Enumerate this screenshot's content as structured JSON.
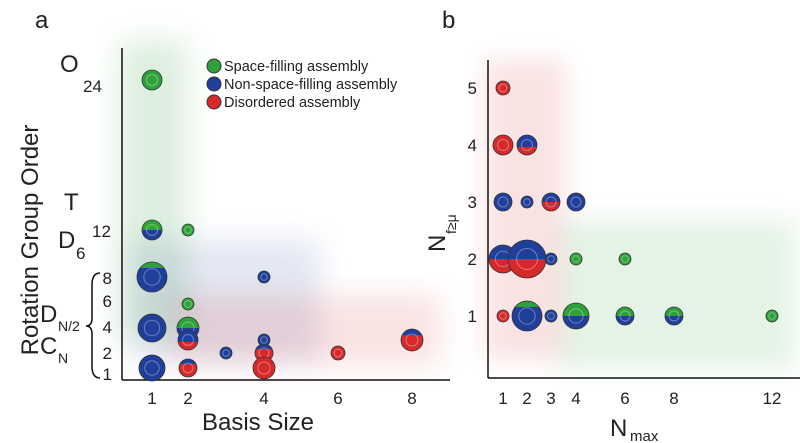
{
  "panels": {
    "a": "a",
    "b": "b"
  },
  "legend": {
    "space_filling": "Space-filling assembly",
    "non_space_filling": "Non-space-filling assembly",
    "disordered": "Disordered assembly"
  },
  "colors": {
    "space_filling": "#2fa13a",
    "non_space_filling": "#1f3f9a",
    "disordered": "#d62a2a",
    "axis": "#111111"
  },
  "chart_data": [
    {
      "panel": "a",
      "type": "scatter",
      "xlabel": "Basis Size",
      "ylabel": "Rotation Group Order",
      "x_ticks": [
        "1",
        "2",
        "4",
        "6",
        "8"
      ],
      "y_labels": {
        "O": "O",
        "O_sub": "24",
        "T": "T",
        "D6": "D",
        "D6_sub": "6",
        "twelve": "12",
        "DN2": "D",
        "DN2_sub": "N/2",
        "CN": "C",
        "CN_sub": "N"
      },
      "y_ticks": [
        "8",
        "6",
        "4",
        "2",
        "1"
      ],
      "points": [
        {
          "x": 1,
          "y": "24",
          "size": 1.0,
          "comp": {
            "space_filling": 1.0
          }
        },
        {
          "x": 1,
          "y": "12",
          "size": 1.0,
          "comp": {
            "space_filling": 0.5,
            "non_space_filling": 0.5
          }
        },
        {
          "x": 2,
          "y": "12",
          "size": 0.6,
          "comp": {
            "space_filling": 1.0
          }
        },
        {
          "x": 1,
          "y": "8",
          "size": 1.5,
          "comp": {
            "non_space_filling": 0.8,
            "space_filling": 0.2
          }
        },
        {
          "x": 4,
          "y": "8",
          "size": 0.6,
          "comp": {
            "non_space_filling": 1.0
          }
        },
        {
          "x": 2,
          "y": "6",
          "size": 0.6,
          "comp": {
            "space_filling": 1.0
          }
        },
        {
          "x": 1,
          "y": "4",
          "size": 1.4,
          "comp": {
            "non_space_filling": 1.0
          }
        },
        {
          "x": 2,
          "y": "4",
          "size": 1.1,
          "comp": {
            "non_space_filling": 0.5,
            "space_filling": 0.5
          }
        },
        {
          "x": 4,
          "y": "3",
          "size": 0.6,
          "comp": {
            "non_space_filling": 1.0
          }
        },
        {
          "x": 2,
          "y": "3",
          "size": 1.0,
          "comp": {
            "non_space_filling": 0.6,
            "disordered": 0.4
          }
        },
        {
          "x": 8,
          "y": "3",
          "size": 1.1,
          "comp": {
            "disordered": 0.7,
            "non_space_filling": 0.3
          }
        },
        {
          "x": 3,
          "y": "2",
          "size": 0.6,
          "comp": {
            "non_space_filling": 1.0
          }
        },
        {
          "x": 4,
          "y": "2",
          "size": 0.9,
          "comp": {
            "disordered": 0.7,
            "non_space_filling": 0.3
          }
        },
        {
          "x": 6,
          "y": "2",
          "size": 0.7,
          "comp": {
            "disordered": 1.0
          }
        },
        {
          "x": 1,
          "y": "1",
          "size": 1.3,
          "comp": {
            "non_space_filling": 1.0
          }
        },
        {
          "x": 2,
          "y": "1",
          "size": 0.9,
          "comp": {
            "disordered": 0.7,
            "non_space_filling": 0.3
          }
        },
        {
          "x": 4,
          "y": "1",
          "size": 1.1,
          "comp": {
            "disordered": 1.0
          }
        }
      ]
    },
    {
      "panel": "b",
      "type": "scatter",
      "xlabel": "N",
      "xlabel_sub": "max",
      "ylabel": "N",
      "ylabel_sub": "f≥μ",
      "x_ticks": [
        1,
        2,
        3,
        4,
        6,
        8,
        12
      ],
      "y_ticks": [
        1,
        2,
        3,
        4,
        5
      ],
      "points": [
        {
          "x": 1,
          "y": 5,
          "size": 0.7,
          "comp": {
            "disordered": 1.0
          }
        },
        {
          "x": 1,
          "y": 4,
          "size": 1.0,
          "comp": {
            "disordered": 1.0
          }
        },
        {
          "x": 2,
          "y": 4,
          "size": 1.0,
          "comp": {
            "non_space_filling": 0.6,
            "disordered": 0.4
          }
        },
        {
          "x": 1,
          "y": 3,
          "size": 0.9,
          "comp": {
            "non_space_filling": 1.0
          }
        },
        {
          "x": 2,
          "y": 3,
          "size": 0.6,
          "comp": {
            "non_space_filling": 1.0
          }
        },
        {
          "x": 3,
          "y": 3,
          "size": 0.9,
          "comp": {
            "disordered": 0.5,
            "non_space_filling": 0.5
          }
        },
        {
          "x": 4,
          "y": 3,
          "size": 0.9,
          "comp": {
            "non_space_filling": 1.0
          }
        },
        {
          "x": 1,
          "y": 2,
          "size": 1.4,
          "comp": {
            "non_space_filling": 0.5,
            "disordered": 0.5
          }
        },
        {
          "x": 2,
          "y": 2,
          "size": 1.9,
          "comp": {
            "non_space_filling": 0.5,
            "disordered": 0.5
          }
        },
        {
          "x": 3,
          "y": 2,
          "size": 0.6,
          "comp": {
            "non_space_filling": 1.0
          }
        },
        {
          "x": 4,
          "y": 2,
          "size": 0.6,
          "comp": {
            "space_filling": 1.0
          }
        },
        {
          "x": 6,
          "y": 2,
          "size": 0.6,
          "comp": {
            "space_filling": 1.0
          }
        },
        {
          "x": 1,
          "y": 1,
          "size": 0.6,
          "comp": {
            "disordered": 1.0
          }
        },
        {
          "x": 2,
          "y": 1,
          "size": 1.5,
          "comp": {
            "non_space_filling": 0.8,
            "space_filling": 0.2
          }
        },
        {
          "x": 3,
          "y": 1,
          "size": 0.6,
          "comp": {
            "non_space_filling": 1.0
          }
        },
        {
          "x": 4,
          "y": 1,
          "size": 1.3,
          "comp": {
            "space_filling": 0.5,
            "non_space_filling": 0.5
          }
        },
        {
          "x": 6,
          "y": 1,
          "size": 0.9,
          "comp": {
            "space_filling": 0.5,
            "non_space_filling": 0.5
          }
        },
        {
          "x": 8,
          "y": 1,
          "size": 0.9,
          "comp": {
            "space_filling": 0.5,
            "non_space_filling": 0.5
          }
        },
        {
          "x": 12,
          "y": 1,
          "size": 0.6,
          "comp": {
            "space_filling": 1.0
          }
        }
      ]
    }
  ]
}
